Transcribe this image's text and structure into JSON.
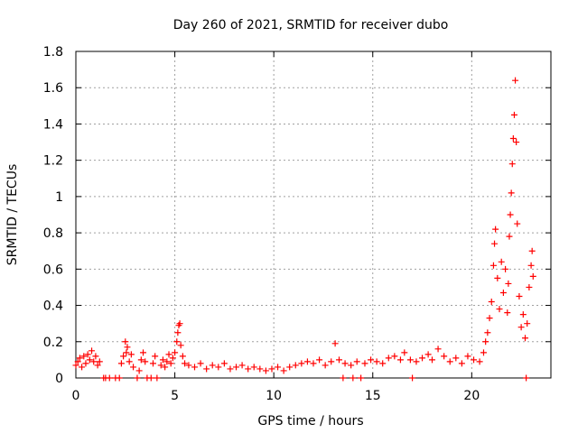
{
  "chart_data": {
    "type": "scatter",
    "title": "Day 260 of 2021, SRMTID for receiver dubo",
    "xlabel": "GPS time / hours",
    "ylabel": "SRMTID / TECUs",
    "xlim": [
      0,
      24
    ],
    "ylim": [
      0,
      1.8
    ],
    "xticks": [
      0,
      5,
      10,
      15,
      20
    ],
    "xtick_labels": [
      "0",
      "5",
      "10",
      "15",
      "20"
    ],
    "yticks": [
      0,
      0.2,
      0.4,
      0.6,
      0.8,
      1.0,
      1.2,
      1.4,
      1.6,
      1.8
    ],
    "ytick_labels": [
      "0",
      "0.2",
      "0.4",
      "0.6",
      "0.8",
      "1",
      "1.2",
      "1.4",
      "1.6",
      "1.8"
    ],
    "grid": true,
    "marker": "+",
    "series": [
      {
        "name": "SRMTID",
        "color": "#ff0000",
        "points": [
          [
            0.0,
            0.07
          ],
          [
            0.1,
            0.09
          ],
          [
            0.2,
            0.11
          ],
          [
            0.3,
            0.06
          ],
          [
            0.4,
            0.12
          ],
          [
            0.5,
            0.08
          ],
          [
            0.6,
            0.13
          ],
          [
            0.7,
            0.1
          ],
          [
            0.8,
            0.15
          ],
          [
            0.9,
            0.09
          ],
          [
            1.0,
            0.12
          ],
          [
            1.1,
            0.07
          ],
          [
            1.2,
            0.09
          ],
          [
            1.4,
            0.0
          ],
          [
            1.5,
            0.0
          ],
          [
            1.7,
            0.0
          ],
          [
            2.0,
            0.0
          ],
          [
            2.2,
            0.0
          ],
          [
            2.3,
            0.08
          ],
          [
            2.4,
            0.12
          ],
          [
            2.5,
            0.2
          ],
          [
            2.55,
            0.14
          ],
          [
            2.6,
            0.17
          ],
          [
            2.7,
            0.09
          ],
          [
            2.8,
            0.13
          ],
          [
            2.9,
            0.06
          ],
          [
            3.1,
            0.0
          ],
          [
            3.2,
            0.04
          ],
          [
            3.3,
            0.1
          ],
          [
            3.4,
            0.14
          ],
          [
            3.5,
            0.09
          ],
          [
            3.6,
            0.0
          ],
          [
            3.8,
            0.0
          ],
          [
            3.9,
            0.08
          ],
          [
            4.0,
            0.12
          ],
          [
            4.1,
            0.0
          ],
          [
            4.3,
            0.07
          ],
          [
            4.4,
            0.1
          ],
          [
            4.5,
            0.06
          ],
          [
            4.6,
            0.09
          ],
          [
            4.7,
            0.13
          ],
          [
            4.8,
            0.08
          ],
          [
            4.9,
            0.11
          ],
          [
            5.0,
            0.14
          ],
          [
            5.1,
            0.2
          ],
          [
            5.15,
            0.25
          ],
          [
            5.2,
            0.29
          ],
          [
            5.25,
            0.3
          ],
          [
            5.3,
            0.18
          ],
          [
            5.4,
            0.12
          ],
          [
            5.5,
            0.08
          ],
          [
            5.7,
            0.07
          ],
          [
            6.0,
            0.06
          ],
          [
            6.3,
            0.08
          ],
          [
            6.6,
            0.05
          ],
          [
            6.9,
            0.07
          ],
          [
            7.2,
            0.06
          ],
          [
            7.5,
            0.08
          ],
          [
            7.8,
            0.05
          ],
          [
            8.1,
            0.06
          ],
          [
            8.4,
            0.07
          ],
          [
            8.7,
            0.05
          ],
          [
            9.0,
            0.06
          ],
          [
            9.3,
            0.05
          ],
          [
            9.6,
            0.04
          ],
          [
            9.9,
            0.05
          ],
          [
            10.2,
            0.06
          ],
          [
            10.5,
            0.04
          ],
          [
            10.8,
            0.06
          ],
          [
            11.1,
            0.07
          ],
          [
            11.4,
            0.08
          ],
          [
            11.7,
            0.09
          ],
          [
            12.0,
            0.08
          ],
          [
            12.3,
            0.1
          ],
          [
            12.6,
            0.07
          ],
          [
            12.9,
            0.09
          ],
          [
            13.1,
            0.19
          ],
          [
            13.3,
            0.1
          ],
          [
            13.5,
            0.0
          ],
          [
            13.6,
            0.08
          ],
          [
            13.9,
            0.07
          ],
          [
            14.0,
            0.0
          ],
          [
            14.2,
            0.09
          ],
          [
            14.4,
            0.0
          ],
          [
            14.6,
            0.08
          ],
          [
            14.9,
            0.1
          ],
          [
            15.2,
            0.09
          ],
          [
            15.5,
            0.08
          ],
          [
            15.8,
            0.11
          ],
          [
            16.1,
            0.12
          ],
          [
            16.4,
            0.1
          ],
          [
            16.6,
            0.14
          ],
          [
            16.9,
            0.1
          ],
          [
            17.0,
            0.0
          ],
          [
            17.2,
            0.09
          ],
          [
            17.5,
            0.11
          ],
          [
            17.8,
            0.13
          ],
          [
            18.0,
            0.1
          ],
          [
            18.3,
            0.16
          ],
          [
            18.6,
            0.12
          ],
          [
            18.9,
            0.09
          ],
          [
            19.2,
            0.11
          ],
          [
            19.5,
            0.08
          ],
          [
            19.8,
            0.12
          ],
          [
            20.1,
            0.1
          ],
          [
            20.4,
            0.09
          ],
          [
            20.6,
            0.14
          ],
          [
            20.7,
            0.2
          ],
          [
            20.8,
            0.25
          ],
          [
            20.9,
            0.33
          ],
          [
            21.0,
            0.42
          ],
          [
            21.1,
            0.62
          ],
          [
            21.15,
            0.74
          ],
          [
            21.2,
            0.82
          ],
          [
            21.3,
            0.55
          ],
          [
            21.4,
            0.38
          ],
          [
            21.5,
            0.64
          ],
          [
            21.6,
            0.47
          ],
          [
            21.7,
            0.6
          ],
          [
            21.8,
            0.36
          ],
          [
            21.85,
            0.52
          ],
          [
            21.9,
            0.78
          ],
          [
            21.95,
            0.9
          ],
          [
            22.0,
            1.02
          ],
          [
            22.05,
            1.18
          ],
          [
            22.1,
            1.32
          ],
          [
            22.15,
            1.45
          ],
          [
            22.2,
            1.64
          ],
          [
            22.25,
            1.3
          ],
          [
            22.3,
            0.85
          ],
          [
            22.4,
            0.45
          ],
          [
            22.5,
            0.28
          ],
          [
            22.6,
            0.35
          ],
          [
            22.7,
            0.22
          ],
          [
            22.75,
            0.0
          ],
          [
            22.8,
            0.3
          ],
          [
            22.9,
            0.5
          ],
          [
            23.0,
            0.62
          ],
          [
            23.05,
            0.7
          ],
          [
            23.1,
            0.56
          ]
        ]
      }
    ]
  }
}
